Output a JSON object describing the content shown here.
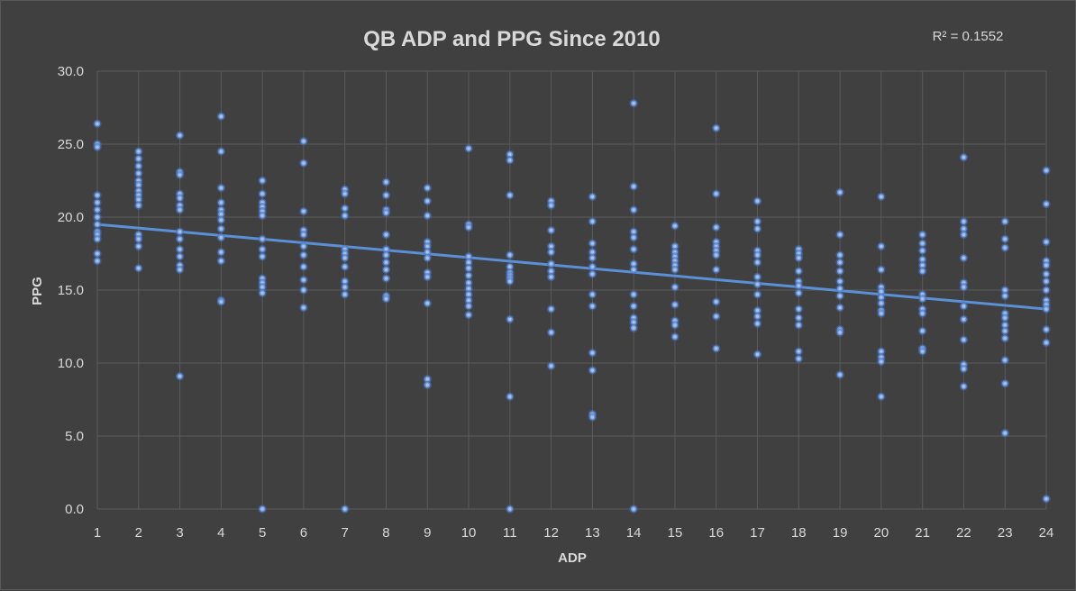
{
  "chart_data": {
    "type": "scatter",
    "title": "QB ADP and PPG Since 2010",
    "xlabel": "ADP",
    "ylabel": "PPG",
    "r_squared_label": "R² = 0.1552",
    "xlim": [
      1,
      24
    ],
    "ylim": [
      0,
      30
    ],
    "x_ticks": [
      "1",
      "2",
      "3",
      "4",
      "5",
      "6",
      "7",
      "8",
      "9",
      "10",
      "11",
      "12",
      "13",
      "14",
      "15",
      "16",
      "17",
      "18",
      "19",
      "20",
      "21",
      "22",
      "23",
      "24"
    ],
    "y_ticks": [
      "0.0",
      "5.0",
      "10.0",
      "15.0",
      "20.0",
      "25.0",
      "30.0"
    ],
    "grid": true,
    "legend": "none",
    "marker_color": "#a9c4ec",
    "trendline": {
      "type": "linear",
      "color": "#5b8fd6",
      "start": [
        1,
        19.5
      ],
      "end": [
        24,
        13.7
      ]
    },
    "points": [
      [
        1,
        26.4
      ],
      [
        1,
        25.0
      ],
      [
        1,
        24.8
      ],
      [
        1,
        21.5
      ],
      [
        1,
        21.0
      ],
      [
        1,
        20.5
      ],
      [
        1,
        20.0
      ],
      [
        1,
        19.5
      ],
      [
        1,
        19.0
      ],
      [
        1,
        18.8
      ],
      [
        1,
        18.5
      ],
      [
        1,
        17.5
      ],
      [
        1,
        17.0
      ],
      [
        2,
        24.5
      ],
      [
        2,
        24.0
      ],
      [
        2,
        23.5
      ],
      [
        2,
        23.0
      ],
      [
        2,
        22.5
      ],
      [
        2,
        22.2
      ],
      [
        2,
        21.8
      ],
      [
        2,
        21.5
      ],
      [
        2,
        21.2
      ],
      [
        2,
        20.8
      ],
      [
        2,
        18.8
      ],
      [
        2,
        18.5
      ],
      [
        2,
        18.0
      ],
      [
        2,
        16.5
      ],
      [
        3,
        25.6
      ],
      [
        3,
        23.1
      ],
      [
        3,
        22.9
      ],
      [
        3,
        21.6
      ],
      [
        3,
        21.3
      ],
      [
        3,
        20.8
      ],
      [
        3,
        20.5
      ],
      [
        3,
        19.0
      ],
      [
        3,
        18.5
      ],
      [
        3,
        17.8
      ],
      [
        3,
        17.3
      ],
      [
        3,
        16.7
      ],
      [
        3,
        16.4
      ],
      [
        3,
        9.1
      ],
      [
        4,
        26.9
      ],
      [
        4,
        24.5
      ],
      [
        4,
        22.0
      ],
      [
        4,
        21.0
      ],
      [
        4,
        20.5
      ],
      [
        4,
        20.2
      ],
      [
        4,
        19.8
      ],
      [
        4,
        19.2
      ],
      [
        4,
        18.6
      ],
      [
        4,
        17.6
      ],
      [
        4,
        17.0
      ],
      [
        4,
        14.3
      ],
      [
        4,
        14.2
      ],
      [
        5,
        22.5
      ],
      [
        5,
        21.6
      ],
      [
        5,
        21.0
      ],
      [
        5,
        20.7
      ],
      [
        5,
        20.4
      ],
      [
        5,
        20.1
      ],
      [
        5,
        18.5
      ],
      [
        5,
        17.8
      ],
      [
        5,
        17.3
      ],
      [
        5,
        15.8
      ],
      [
        5,
        15.5
      ],
      [
        5,
        15.2
      ],
      [
        5,
        14.8
      ],
      [
        5,
        0.0
      ],
      [
        6,
        25.2
      ],
      [
        6,
        23.7
      ],
      [
        6,
        20.4
      ],
      [
        6,
        19.1
      ],
      [
        6,
        18.8
      ],
      [
        6,
        18.0
      ],
      [
        6,
        17.4
      ],
      [
        6,
        16.6
      ],
      [
        6,
        15.7
      ],
      [
        6,
        15.0
      ],
      [
        6,
        13.8
      ],
      [
        7,
        21.9
      ],
      [
        7,
        21.6
      ],
      [
        7,
        20.6
      ],
      [
        7,
        20.1
      ],
      [
        7,
        17.8
      ],
      [
        7,
        17.5
      ],
      [
        7,
        17.2
      ],
      [
        7,
        16.6
      ],
      [
        7,
        15.6
      ],
      [
        7,
        15.2
      ],
      [
        7,
        14.7
      ],
      [
        7,
        0.0
      ],
      [
        8,
        22.4
      ],
      [
        8,
        21.5
      ],
      [
        8,
        20.5
      ],
      [
        8,
        20.3
      ],
      [
        8,
        18.8
      ],
      [
        8,
        17.8
      ],
      [
        8,
        17.4
      ],
      [
        8,
        16.9
      ],
      [
        8,
        16.4
      ],
      [
        8,
        15.8
      ],
      [
        8,
        14.6
      ],
      [
        8,
        14.4
      ],
      [
        9,
        22.0
      ],
      [
        9,
        21.1
      ],
      [
        9,
        20.1
      ],
      [
        9,
        18.3
      ],
      [
        9,
        18.0
      ],
      [
        9,
        17.6
      ],
      [
        9,
        17.2
      ],
      [
        9,
        16.2
      ],
      [
        9,
        15.9
      ],
      [
        9,
        14.1
      ],
      [
        9,
        8.9
      ],
      [
        9,
        8.5
      ],
      [
        10,
        24.7
      ],
      [
        10,
        19.5
      ],
      [
        10,
        19.3
      ],
      [
        10,
        17.3
      ],
      [
        10,
        16.9
      ],
      [
        10,
        16.5
      ],
      [
        10,
        16.0
      ],
      [
        10,
        15.5
      ],
      [
        10,
        15.1
      ],
      [
        10,
        14.7
      ],
      [
        10,
        14.3
      ],
      [
        10,
        13.9
      ],
      [
        10,
        13.3
      ],
      [
        11,
        24.3
      ],
      [
        11,
        23.9
      ],
      [
        11,
        21.5
      ],
      [
        11,
        17.4
      ],
      [
        11,
        16.6
      ],
      [
        11,
        16.2
      ],
      [
        11,
        16.0
      ],
      [
        11,
        15.8
      ],
      [
        11,
        15.6
      ],
      [
        11,
        13.0
      ],
      [
        11,
        7.7
      ],
      [
        11,
        0.0
      ],
      [
        12,
        21.1
      ],
      [
        12,
        20.8
      ],
      [
        12,
        19.1
      ],
      [
        12,
        18.0
      ],
      [
        12,
        17.6
      ],
      [
        12,
        16.8
      ],
      [
        12,
        16.3
      ],
      [
        12,
        15.9
      ],
      [
        12,
        13.7
      ],
      [
        12,
        12.1
      ],
      [
        12,
        9.8
      ],
      [
        13,
        21.4
      ],
      [
        13,
        19.7
      ],
      [
        13,
        18.2
      ],
      [
        13,
        17.6
      ],
      [
        13,
        17.2
      ],
      [
        13,
        16.6
      ],
      [
        13,
        16.1
      ],
      [
        13,
        14.7
      ],
      [
        13,
        13.9
      ],
      [
        13,
        10.7
      ],
      [
        13,
        9.5
      ],
      [
        13,
        6.5
      ],
      [
        13,
        6.3
      ],
      [
        14,
        27.8
      ],
      [
        14,
        22.1
      ],
      [
        14,
        20.5
      ],
      [
        14,
        19.0
      ],
      [
        14,
        18.6
      ],
      [
        14,
        17.8
      ],
      [
        14,
        16.8
      ],
      [
        14,
        16.4
      ],
      [
        14,
        14.7
      ],
      [
        14,
        13.9
      ],
      [
        14,
        13.1
      ],
      [
        14,
        12.8
      ],
      [
        14,
        12.4
      ],
      [
        14,
        0.0
      ],
      [
        15,
        19.4
      ],
      [
        15,
        18.0
      ],
      [
        15,
        17.6
      ],
      [
        15,
        17.3
      ],
      [
        15,
        17.0
      ],
      [
        15,
        16.7
      ],
      [
        15,
        16.4
      ],
      [
        15,
        15.2
      ],
      [
        15,
        14.0
      ],
      [
        15,
        12.9
      ],
      [
        15,
        12.6
      ],
      [
        15,
        11.8
      ],
      [
        16,
        26.1
      ],
      [
        16,
        21.6
      ],
      [
        16,
        19.3
      ],
      [
        16,
        18.3
      ],
      [
        16,
        18.0
      ],
      [
        16,
        17.7
      ],
      [
        16,
        17.4
      ],
      [
        16,
        16.4
      ],
      [
        16,
        14.2
      ],
      [
        16,
        13.2
      ],
      [
        16,
        11.0
      ],
      [
        17,
        21.1
      ],
      [
        17,
        19.7
      ],
      [
        17,
        19.2
      ],
      [
        17,
        17.7
      ],
      [
        17,
        17.4
      ],
      [
        17,
        16.9
      ],
      [
        17,
        15.9
      ],
      [
        17,
        15.4
      ],
      [
        17,
        14.7
      ],
      [
        17,
        13.6
      ],
      [
        17,
        13.2
      ],
      [
        17,
        12.7
      ],
      [
        17,
        10.6
      ],
      [
        18,
        17.8
      ],
      [
        18,
        17.5
      ],
      [
        18,
        17.2
      ],
      [
        18,
        16.3
      ],
      [
        18,
        15.6
      ],
      [
        18,
        15.3
      ],
      [
        18,
        14.8
      ],
      [
        18,
        13.7
      ],
      [
        18,
        13.1
      ],
      [
        18,
        12.6
      ],
      [
        18,
        10.8
      ],
      [
        18,
        10.3
      ],
      [
        19,
        21.7
      ],
      [
        19,
        18.8
      ],
      [
        19,
        17.4
      ],
      [
        19,
        16.9
      ],
      [
        19,
        16.3
      ],
      [
        19,
        15.6
      ],
      [
        19,
        15.1
      ],
      [
        19,
        14.6
      ],
      [
        19,
        13.8
      ],
      [
        19,
        12.3
      ],
      [
        19,
        12.1
      ],
      [
        19,
        9.2
      ],
      [
        20,
        21.4
      ],
      [
        20,
        18.0
      ],
      [
        20,
        16.4
      ],
      [
        20,
        15.2
      ],
      [
        20,
        14.9
      ],
      [
        20,
        14.5
      ],
      [
        20,
        14.1
      ],
      [
        20,
        13.6
      ],
      [
        20,
        13.4
      ],
      [
        20,
        10.8
      ],
      [
        20,
        10.4
      ],
      [
        20,
        10.1
      ],
      [
        20,
        7.7
      ],
      [
        21,
        18.8
      ],
      [
        21,
        18.2
      ],
      [
        21,
        17.7
      ],
      [
        21,
        17.1
      ],
      [
        21,
        16.7
      ],
      [
        21,
        16.3
      ],
      [
        21,
        14.7
      ],
      [
        21,
        14.4
      ],
      [
        21,
        13.7
      ],
      [
        21,
        13.4
      ],
      [
        21,
        12.2
      ],
      [
        21,
        11.0
      ],
      [
        21,
        10.8
      ],
      [
        22,
        24.1
      ],
      [
        22,
        19.7
      ],
      [
        22,
        19.2
      ],
      [
        22,
        18.8
      ],
      [
        22,
        17.2
      ],
      [
        22,
        15.5
      ],
      [
        22,
        15.2
      ],
      [
        22,
        13.9
      ],
      [
        22,
        13.0
      ],
      [
        22,
        11.6
      ],
      [
        22,
        9.9
      ],
      [
        22,
        9.6
      ],
      [
        22,
        8.4
      ],
      [
        23,
        19.7
      ],
      [
        23,
        18.5
      ],
      [
        23,
        17.9
      ],
      [
        23,
        15.0
      ],
      [
        23,
        14.6
      ],
      [
        23,
        13.4
      ],
      [
        23,
        13.1
      ],
      [
        23,
        12.6
      ],
      [
        23,
        12.2
      ],
      [
        23,
        11.7
      ],
      [
        23,
        10.2
      ],
      [
        23,
        8.6
      ],
      [
        23,
        5.2
      ],
      [
        24,
        23.2
      ],
      [
        24,
        20.9
      ],
      [
        24,
        18.3
      ],
      [
        24,
        17.0
      ],
      [
        24,
        16.7
      ],
      [
        24,
        16.1
      ],
      [
        24,
        15.6
      ],
      [
        24,
        15.0
      ],
      [
        24,
        14.3
      ],
      [
        24,
        14.0
      ],
      [
        24,
        13.7
      ],
      [
        24,
        12.3
      ],
      [
        24,
        11.4
      ],
      [
        24,
        0.7
      ]
    ]
  }
}
